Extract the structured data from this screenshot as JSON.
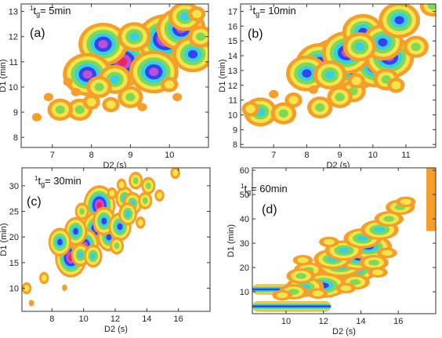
{
  "chart_data": [
    {
      "type": "heatmap",
      "panel_label": "(a)",
      "annotation": {
        "sup": "1",
        "t": "t",
        "sub": "g",
        "rest": "= 5min"
      },
      "xlabel": "D2 (s)",
      "ylabel": "D1 (min)",
      "xlim": [
        6.2,
        11.0
      ],
      "ylim": [
        7.6,
        13.3
      ],
      "xticks": [
        7,
        8,
        9,
        10
      ],
      "yticks": [
        8,
        9,
        10,
        11,
        12,
        13
      ],
      "colorscale": [
        "#f59e2a",
        "#f4e64a",
        "#7ed957",
        "#35d0e6",
        "#3344ee",
        "#c04fd8",
        "#ee2266"
      ],
      "peaks": [
        {
          "x": 9.4,
          "y": 11.4,
          "level": 6
        },
        {
          "x": 8.8,
          "y": 11.0,
          "level": 6
        },
        {
          "x": 9.9,
          "y": 11.9,
          "level": 6
        },
        {
          "x": 8.3,
          "y": 11.7,
          "level": 5
        },
        {
          "x": 10.3,
          "y": 12.3,
          "level": 5
        },
        {
          "x": 9.6,
          "y": 10.6,
          "level": 5
        },
        {
          "x": 10.6,
          "y": 11.3,
          "level": 4
        },
        {
          "x": 7.9,
          "y": 10.5,
          "level": 5
        },
        {
          "x": 8.6,
          "y": 10.3,
          "level": 3
        },
        {
          "x": 10.4,
          "y": 12.8,
          "level": 3
        },
        {
          "x": 9.1,
          "y": 12.0,
          "level": 3
        },
        {
          "x": 8.2,
          "y": 10.0,
          "level": 2
        },
        {
          "x": 9.0,
          "y": 9.6,
          "level": 2
        },
        {
          "x": 8.5,
          "y": 9.3,
          "level": 1
        },
        {
          "x": 7.7,
          "y": 9.1,
          "level": 2
        },
        {
          "x": 7.2,
          "y": 9.1,
          "level": 2
        },
        {
          "x": 6.6,
          "y": 8.8,
          "level": 0
        },
        {
          "x": 6.9,
          "y": 9.6,
          "level": 0
        },
        {
          "x": 10.0,
          "y": 10.1,
          "level": 1
        },
        {
          "x": 10.2,
          "y": 9.6,
          "level": 0
        },
        {
          "x": 10.8,
          "y": 12.0,
          "level": 2
        },
        {
          "x": 7.6,
          "y": 9.8,
          "level": 0
        },
        {
          "x": 8.0,
          "y": 9.4,
          "level": 1
        },
        {
          "x": 7.4,
          "y": 10.2,
          "level": 0
        },
        {
          "x": 9.3,
          "y": 9.2,
          "level": 0
        },
        {
          "x": 10.7,
          "y": 12.9,
          "level": 1
        }
      ]
    },
    {
      "type": "heatmap",
      "panel_label": "(b)",
      "annotation": {
        "sup": "1",
        "t": "t",
        "sub": "g",
        "rest": "= 10min"
      },
      "xlabel": "D2 (s)",
      "ylabel": "D1 (min)",
      "xlim": [
        6.0,
        11.9
      ],
      "ylim": [
        7.8,
        17.5
      ],
      "xticks": [
        7,
        8,
        9,
        10,
        11
      ],
      "yticks": [
        8,
        9,
        10,
        11,
        12,
        13,
        14,
        15,
        16,
        17
      ],
      "colorscale": [
        "#f59e2a",
        "#f4e64a",
        "#7ed957",
        "#35d0e6",
        "#3344ee",
        "#c04fd8",
        "#ee2266"
      ],
      "peaks": [
        {
          "x": 8.9,
          "y": 13.5,
          "level": 6
        },
        {
          "x": 9.5,
          "y": 13.4,
          "level": 6
        },
        {
          "x": 10.1,
          "y": 13.3,
          "level": 5
        },
        {
          "x": 8.4,
          "y": 13.4,
          "level": 5
        },
        {
          "x": 9.2,
          "y": 14.2,
          "level": 5
        },
        {
          "x": 10.5,
          "y": 13.9,
          "level": 5
        },
        {
          "x": 9.7,
          "y": 15.6,
          "level": 4
        },
        {
          "x": 10.3,
          "y": 14.9,
          "level": 4
        },
        {
          "x": 10.8,
          "y": 16.4,
          "level": 4
        },
        {
          "x": 8.0,
          "y": 12.8,
          "level": 4
        },
        {
          "x": 9.6,
          "y": 14.6,
          "level": 3
        },
        {
          "x": 8.7,
          "y": 12.7,
          "level": 3
        },
        {
          "x": 9.4,
          "y": 11.6,
          "level": 2
        },
        {
          "x": 9.0,
          "y": 11.2,
          "level": 2
        },
        {
          "x": 6.6,
          "y": 10.2,
          "level": 3
        },
        {
          "x": 7.3,
          "y": 10.1,
          "level": 2
        },
        {
          "x": 8.4,
          "y": 10.5,
          "level": 2
        },
        {
          "x": 10.4,
          "y": 12.4,
          "level": 2
        },
        {
          "x": 11.3,
          "y": 14.6,
          "level": 2
        },
        {
          "x": 11.8,
          "y": 17.4,
          "level": 2
        },
        {
          "x": 6.3,
          "y": 10.4,
          "level": 1
        },
        {
          "x": 7.0,
          "y": 11.4,
          "level": 0
        },
        {
          "x": 9.5,
          "y": 12.3,
          "level": 1
        },
        {
          "x": 7.6,
          "y": 11.0,
          "level": 1
        },
        {
          "x": 8.2,
          "y": 11.7,
          "level": 0
        },
        {
          "x": 10.7,
          "y": 12.0,
          "level": 1
        }
      ]
    },
    {
      "type": "heatmap",
      "panel_label": "(c)",
      "annotation": {
        "sup": "1",
        "t": "t",
        "sub": "g",
        "rest": "= 30min"
      },
      "xlabel": "D2 (s)",
      "ylabel": "D1 (min)",
      "xlim": [
        6.1,
        18.0
      ],
      "ylim": [
        5.5,
        33.5
      ],
      "xticks": [
        8,
        10,
        12,
        14,
        16
      ],
      "yticks": [
        10,
        15,
        20,
        25,
        30
      ],
      "colorscale": [
        "#f59e2a",
        "#f4e64a",
        "#7ed957",
        "#35d0e6",
        "#3344ee",
        "#c04fd8",
        "#ee2266"
      ],
      "peaks": [
        {
          "x": 9.2,
          "y": 16.0,
          "level": 6
        },
        {
          "x": 11.0,
          "y": 26.2,
          "level": 6
        },
        {
          "x": 10.8,
          "y": 21.6,
          "level": 5
        },
        {
          "x": 10.1,
          "y": 18.4,
          "level": 5
        },
        {
          "x": 11.6,
          "y": 20.0,
          "level": 4
        },
        {
          "x": 11.3,
          "y": 23.1,
          "level": 4
        },
        {
          "x": 12.3,
          "y": 22.0,
          "level": 4
        },
        {
          "x": 9.5,
          "y": 21.1,
          "level": 4
        },
        {
          "x": 8.5,
          "y": 19.0,
          "level": 4
        },
        {
          "x": 12.6,
          "y": 27.6,
          "level": 3
        },
        {
          "x": 13.1,
          "y": 26.5,
          "level": 3
        },
        {
          "x": 13.3,
          "y": 31.0,
          "level": 2
        },
        {
          "x": 14.1,
          "y": 30.0,
          "level": 2
        },
        {
          "x": 9.8,
          "y": 16.5,
          "level": 3
        },
        {
          "x": 10.6,
          "y": 16.3,
          "level": 3
        },
        {
          "x": 12.1,
          "y": 18.3,
          "level": 2
        },
        {
          "x": 12.8,
          "y": 24.5,
          "level": 3
        },
        {
          "x": 7.5,
          "y": 12.0,
          "level": 1
        },
        {
          "x": 6.4,
          "y": 10.0,
          "level": 1
        },
        {
          "x": 6.7,
          "y": 7.1,
          "level": 0
        },
        {
          "x": 8.8,
          "y": 10.1,
          "level": 0
        },
        {
          "x": 13.9,
          "y": 27.1,
          "level": 2
        },
        {
          "x": 14.8,
          "y": 28.1,
          "level": 1
        },
        {
          "x": 15.8,
          "y": 32.5,
          "level": 1
        },
        {
          "x": 9.9,
          "y": 25.0,
          "level": 2
        },
        {
          "x": 11.8,
          "y": 28.5,
          "level": 1
        },
        {
          "x": 12.4,
          "y": 30.2,
          "level": 1
        },
        {
          "x": 13.6,
          "y": 22.8,
          "level": 1
        }
      ]
    },
    {
      "type": "heatmap",
      "panel_label": "(d)",
      "annotation": {
        "sup": "1",
        "t": "t",
        "sub": "g",
        "rest": "= 60min"
      },
      "xlabel": "D2 (s)",
      "ylabel": "D1 (min)",
      "xlim": [
        8.2,
        18.0
      ],
      "ylim": [
        1.0,
        61.0
      ],
      "xticks": [
        10,
        12,
        14,
        16
      ],
      "yticks": [
        10,
        20,
        30,
        40,
        50,
        60
      ],
      "colorscale": [
        "#f59e2a",
        "#f4e64a",
        "#7ed957",
        "#35d0e6",
        "#3344ee",
        "#c04fd8",
        "#ee2266"
      ],
      "peaks": [
        {
          "x": 12.2,
          "y": 16.0,
          "level": 5
        },
        {
          "x": 12.8,
          "y": 17.2,
          "level": 5
        },
        {
          "x": 13.4,
          "y": 19.5,
          "level": 5
        },
        {
          "x": 11.5,
          "y": 14.5,
          "level": 4
        },
        {
          "x": 12.0,
          "y": 12.6,
          "level": 4
        },
        {
          "x": 12.9,
          "y": 21.2,
          "level": 4
        },
        {
          "x": 13.9,
          "y": 24.0,
          "level": 4
        },
        {
          "x": 14.4,
          "y": 28.5,
          "level": 4
        },
        {
          "x": 12.5,
          "y": 23.5,
          "level": 3
        },
        {
          "x": 13.1,
          "y": 27.0,
          "level": 3
        },
        {
          "x": 14.1,
          "y": 32.0,
          "level": 3
        },
        {
          "x": 15.0,
          "y": 35.5,
          "level": 3
        },
        {
          "x": 15.5,
          "y": 40.0,
          "level": 2
        },
        {
          "x": 16.1,
          "y": 44.8,
          "level": 2
        },
        {
          "x": 11.0,
          "y": 12.0,
          "level": 3
        },
        {
          "x": 10.4,
          "y": 10.0,
          "level": 2
        },
        {
          "x": 11.2,
          "y": 19.0,
          "level": 2
        },
        {
          "x": 10.8,
          "y": 16.5,
          "level": 2
        },
        {
          "x": 14.7,
          "y": 22.0,
          "level": 2
        },
        {
          "x": 15.4,
          "y": 26.0,
          "level": 1
        },
        {
          "x": 13.7,
          "y": 14.0,
          "level": 2
        },
        {
          "x": 16.4,
          "y": 47.0,
          "level": 1
        },
        {
          "x": 12.3,
          "y": 30.5,
          "level": 1
        },
        {
          "x": 10.9,
          "y": 23.0,
          "level": 1
        },
        {
          "x": 9.8,
          "y": 8.6,
          "level": 1
        },
        {
          "x": 11.7,
          "y": 9.3,
          "level": 1
        },
        {
          "x": 13.2,
          "y": 11.5,
          "level": 1
        },
        {
          "x": 14.9,
          "y": 18.0,
          "level": 1
        }
      ],
      "streaks": [
        {
          "x0": 8.2,
          "x1": 12.6,
          "y": 11.0,
          "level": 4
        },
        {
          "x0": 8.2,
          "x1": 12.4,
          "y": 4.0,
          "level": 4
        }
      ],
      "edge_band": {
        "x0": 17.5,
        "x1": 18.0,
        "y0": 35.0,
        "y1": 61.0,
        "level": 0
      }
    }
  ]
}
